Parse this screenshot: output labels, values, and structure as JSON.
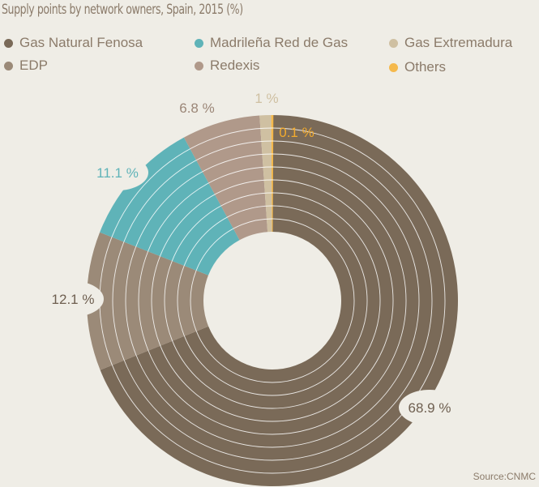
{
  "chart_data": {
    "type": "pie",
    "title": "Supply points by network owners, Spain, 2015 (%)",
    "slices": [
      {
        "name": "Gas Natural Fenosa",
        "value": 68.9,
        "label": "68.9 %",
        "color": "#7a6a58"
      },
      {
        "name": "EDP",
        "value": 12.1,
        "label": "12.1 %",
        "color": "#9b8a78"
      },
      {
        "name": "Madrileña Red de Gas",
        "value": 11.1,
        "label": "11.1 %",
        "color": "#5fb3b8"
      },
      {
        "name": "Redexis",
        "value": 6.8,
        "label": "6.8 %",
        "color": "#b0998a"
      },
      {
        "name": "Gas Extremadura",
        "value": 1,
        "label": "1 %",
        "color": "#cfc0a2"
      },
      {
        "name": "Others",
        "value": 0.1,
        "label": "0.1 %",
        "color": "#f5b94c"
      }
    ],
    "legend": [
      "Gas Natural Fenosa",
      "Madrileña Red de Gas",
      "Gas Extremadura",
      "EDP",
      "Redexis",
      "Others"
    ],
    "legend_position": "top",
    "donut": true
  },
  "source": "Source:CNMC"
}
